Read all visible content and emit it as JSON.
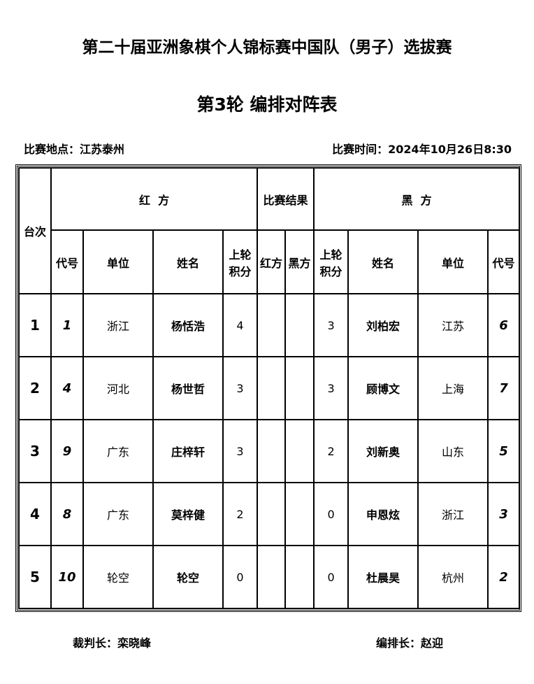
{
  "title": "第二十届亚洲象棋个人锦标赛中国队（男子）选拔赛",
  "subtitle": "第3轮 编排对阵表",
  "location": "比赛地点：江苏泰州",
  "time": "比赛时间：2024年10月26日8:30",
  "headers": {
    "board": "台次",
    "red": "红  方",
    "result": "比赛结果",
    "black": "黑  方",
    "code": "代号",
    "unit": "单位",
    "name": "姓名",
    "prev": "上轮积分",
    "res_red": "红方",
    "res_black": "黑方"
  },
  "rows": [
    {
      "board": "1",
      "rcode": "1",
      "runit": "浙江",
      "rname": "杨恬浩",
      "rscore": "4",
      "bscore": "3",
      "bname": "刘柏宏",
      "bunit": "江苏",
      "bcode": "6"
    },
    {
      "board": "2",
      "rcode": "4",
      "runit": "河北",
      "rname": "杨世哲",
      "rscore": "3",
      "bscore": "3",
      "bname": "顾博文",
      "bunit": "上海",
      "bcode": "7"
    },
    {
      "board": "3",
      "rcode": "9",
      "runit": "广东",
      "rname": "庄梓轩",
      "rscore": "3",
      "bscore": "2",
      "bname": "刘新奥",
      "bunit": "山东",
      "bcode": "5"
    },
    {
      "board": "4",
      "rcode": "8",
      "runit": "广东",
      "rname": "莫梓健",
      "rscore": "2",
      "bscore": "0",
      "bname": "申恩炫",
      "bunit": "浙江",
      "bcode": "3"
    },
    {
      "board": "5",
      "rcode": "10",
      "runit": "轮空",
      "rname": "轮空",
      "rscore": "0",
      "bscore": "0",
      "bname": "杜晨昊",
      "bunit": "杭州",
      "bcode": "2"
    }
  ],
  "referee": "裁判长：栾晓峰",
  "arranger": "编排长：赵迎"
}
